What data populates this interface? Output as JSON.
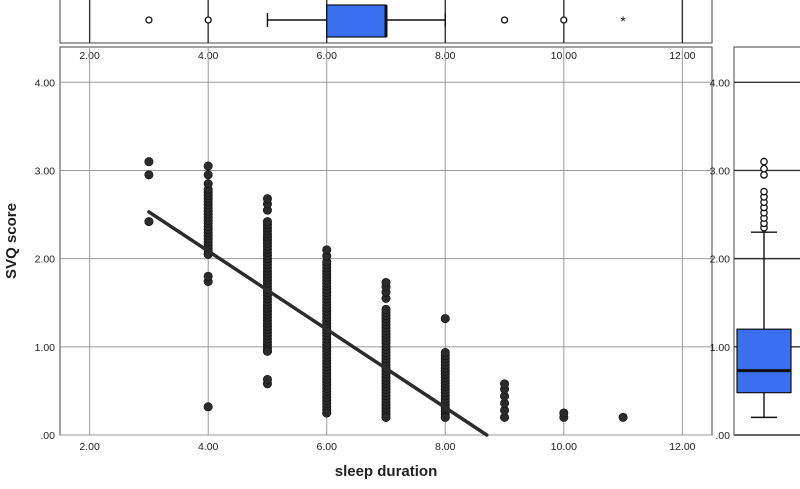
{
  "chart_data": [
    {
      "type": "scatter",
      "xlabel": "sleep duration",
      "ylabel": "SVQ score",
      "xlim": [
        1.5,
        12.5
      ],
      "ylim": [
        0,
        4.4
      ],
      "xticks": [
        2,
        4,
        6,
        8,
        10,
        12
      ],
      "xtick_labels": [
        "2.00",
        "4.00",
        "6.00",
        "8.00",
        "10.00",
        "12.00"
      ],
      "yticks": [
        0,
        1,
        2,
        3,
        4
      ],
      "ytick_labels": [
        ".00",
        "1.00",
        "2.00",
        "3.00",
        "4.00"
      ],
      "grid": true,
      "point_color": "#2b2b2b",
      "groups": [
        {
          "x": 3,
          "points": [
            2.42,
            2.95,
            3.1
          ]
        },
        {
          "x": 4,
          "points": [
            0.32,
            1.74,
            1.8,
            2.05
          ],
          "band": [
            2.05,
            2.8
          ],
          "extra": [
            2.85,
            2.95,
            3.05
          ]
        },
        {
          "x": 5,
          "points": [
            0.58,
            0.63,
            0.95
          ],
          "band": [
            0.95,
            2.45
          ],
          "extra": [
            2.55,
            2.62,
            2.68
          ]
        },
        {
          "x": 6,
          "points": [
            0.25
          ],
          "band": [
            0.25,
            1.98
          ],
          "extra": [
            2.03,
            2.1
          ]
        },
        {
          "x": 7,
          "points": [
            0.2
          ],
          "band": [
            0.2,
            1.45
          ],
          "extra": [
            1.55,
            1.62,
            1.68,
            1.73
          ]
        },
        {
          "x": 8,
          "points": [
            0.2,
            1.32
          ],
          "band": [
            0.2,
            0.95
          ]
        },
        {
          "x": 9,
          "points": [
            0.2,
            0.28,
            0.36,
            0.44,
            0.52,
            0.58
          ]
        },
        {
          "x": 10,
          "points": [
            0.2,
            0.25
          ]
        },
        {
          "x": 11,
          "points": [
            0.2
          ]
        }
      ],
      "fit_line": {
        "x": [
          3,
          8.7
        ],
        "y": [
          2.53,
          0
        ]
      },
      "fit_color": "#2b2b2b"
    },
    {
      "type": "boxplot",
      "orientation": "horizontal",
      "variable": "sleep duration",
      "q1": 6,
      "median": 7,
      "q3": 7,
      "whisker_low": 5,
      "whisker_high": 8,
      "outliers": [
        3,
        4,
        9,
        10
      ],
      "extremes": [
        11
      ],
      "xticks": [
        2,
        4,
        6,
        8,
        10,
        12
      ],
      "xtick_labels": [
        "2.00",
        "4.00",
        "6.00",
        "8.00",
        "10.00",
        "12.00"
      ],
      "box_color": "#3a6ff0"
    },
    {
      "type": "boxplot",
      "orientation": "vertical",
      "variable": "SVQ score",
      "q1": 0.48,
      "median": 0.73,
      "q3": 1.2,
      "whisker_low": 0.2,
      "whisker_high": 2.3,
      "outliers": [
        2.35,
        2.4,
        2.46,
        2.52,
        2.58,
        2.64,
        2.7,
        2.76,
        2.95,
        3.02,
        3.1
      ],
      "yticks": [
        0,
        1,
        2,
        3,
        4
      ],
      "ytick_labels": [
        ".00",
        "1.00",
        "2.00",
        "3.00",
        "4.00"
      ],
      "box_color": "#3a6ff0"
    }
  ]
}
